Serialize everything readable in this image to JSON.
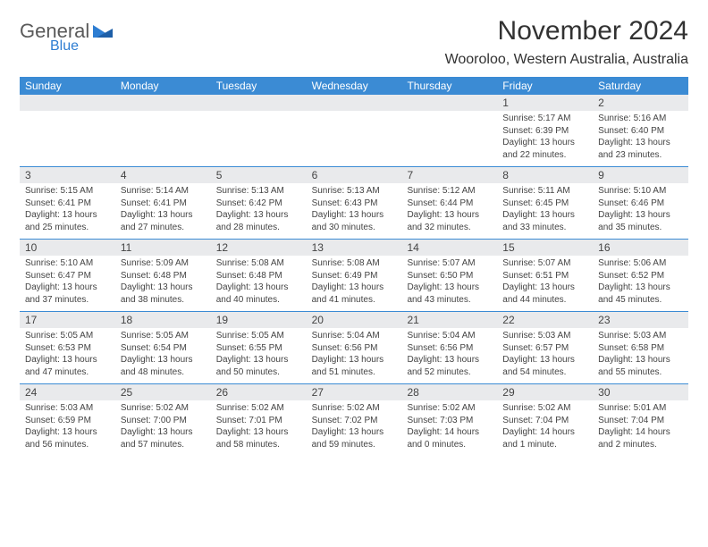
{
  "logo": {
    "word1": "General",
    "word2": "Blue"
  },
  "title": "November 2024",
  "location": "Wooroloo, Western Australia, Australia",
  "colors": {
    "header_bg": "#3b8bd4",
    "header_text": "#ffffff",
    "daynum_bg": "#e9eaec",
    "rule": "#3b8bd4",
    "text": "#444444",
    "logo_gray": "#5a5a5a",
    "logo_blue": "#2d7dd2"
  },
  "day_names": [
    "Sunday",
    "Monday",
    "Tuesday",
    "Wednesday",
    "Thursday",
    "Friday",
    "Saturday"
  ],
  "weeks": [
    {
      "nums": [
        "",
        "",
        "",
        "",
        "",
        "1",
        "2"
      ],
      "cells": [
        "",
        "",
        "",
        "",
        "",
        "Sunrise: 5:17 AM\nSunset: 6:39 PM\nDaylight: 13 hours and 22 minutes.",
        "Sunrise: 5:16 AM\nSunset: 6:40 PM\nDaylight: 13 hours and 23 minutes."
      ]
    },
    {
      "nums": [
        "3",
        "4",
        "5",
        "6",
        "7",
        "8",
        "9"
      ],
      "cells": [
        "Sunrise: 5:15 AM\nSunset: 6:41 PM\nDaylight: 13 hours and 25 minutes.",
        "Sunrise: 5:14 AM\nSunset: 6:41 PM\nDaylight: 13 hours and 27 minutes.",
        "Sunrise: 5:13 AM\nSunset: 6:42 PM\nDaylight: 13 hours and 28 minutes.",
        "Sunrise: 5:13 AM\nSunset: 6:43 PM\nDaylight: 13 hours and 30 minutes.",
        "Sunrise: 5:12 AM\nSunset: 6:44 PM\nDaylight: 13 hours and 32 minutes.",
        "Sunrise: 5:11 AM\nSunset: 6:45 PM\nDaylight: 13 hours and 33 minutes.",
        "Sunrise: 5:10 AM\nSunset: 6:46 PM\nDaylight: 13 hours and 35 minutes."
      ]
    },
    {
      "nums": [
        "10",
        "11",
        "12",
        "13",
        "14",
        "15",
        "16"
      ],
      "cells": [
        "Sunrise: 5:10 AM\nSunset: 6:47 PM\nDaylight: 13 hours and 37 minutes.",
        "Sunrise: 5:09 AM\nSunset: 6:48 PM\nDaylight: 13 hours and 38 minutes.",
        "Sunrise: 5:08 AM\nSunset: 6:48 PM\nDaylight: 13 hours and 40 minutes.",
        "Sunrise: 5:08 AM\nSunset: 6:49 PM\nDaylight: 13 hours and 41 minutes.",
        "Sunrise: 5:07 AM\nSunset: 6:50 PM\nDaylight: 13 hours and 43 minutes.",
        "Sunrise: 5:07 AM\nSunset: 6:51 PM\nDaylight: 13 hours and 44 minutes.",
        "Sunrise: 5:06 AM\nSunset: 6:52 PM\nDaylight: 13 hours and 45 minutes."
      ]
    },
    {
      "nums": [
        "17",
        "18",
        "19",
        "20",
        "21",
        "22",
        "23"
      ],
      "cells": [
        "Sunrise: 5:05 AM\nSunset: 6:53 PM\nDaylight: 13 hours and 47 minutes.",
        "Sunrise: 5:05 AM\nSunset: 6:54 PM\nDaylight: 13 hours and 48 minutes.",
        "Sunrise: 5:05 AM\nSunset: 6:55 PM\nDaylight: 13 hours and 50 minutes.",
        "Sunrise: 5:04 AM\nSunset: 6:56 PM\nDaylight: 13 hours and 51 minutes.",
        "Sunrise: 5:04 AM\nSunset: 6:56 PM\nDaylight: 13 hours and 52 minutes.",
        "Sunrise: 5:03 AM\nSunset: 6:57 PM\nDaylight: 13 hours and 54 minutes.",
        "Sunrise: 5:03 AM\nSunset: 6:58 PM\nDaylight: 13 hours and 55 minutes."
      ]
    },
    {
      "nums": [
        "24",
        "25",
        "26",
        "27",
        "28",
        "29",
        "30"
      ],
      "cells": [
        "Sunrise: 5:03 AM\nSunset: 6:59 PM\nDaylight: 13 hours and 56 minutes.",
        "Sunrise: 5:02 AM\nSunset: 7:00 PM\nDaylight: 13 hours and 57 minutes.",
        "Sunrise: 5:02 AM\nSunset: 7:01 PM\nDaylight: 13 hours and 58 minutes.",
        "Sunrise: 5:02 AM\nSunset: 7:02 PM\nDaylight: 13 hours and 59 minutes.",
        "Sunrise: 5:02 AM\nSunset: 7:03 PM\nDaylight: 14 hours and 0 minutes.",
        "Sunrise: 5:02 AM\nSunset: 7:04 PM\nDaylight: 14 hours and 1 minute.",
        "Sunrise: 5:01 AM\nSunset: 7:04 PM\nDaylight: 14 hours and 2 minutes."
      ]
    }
  ]
}
